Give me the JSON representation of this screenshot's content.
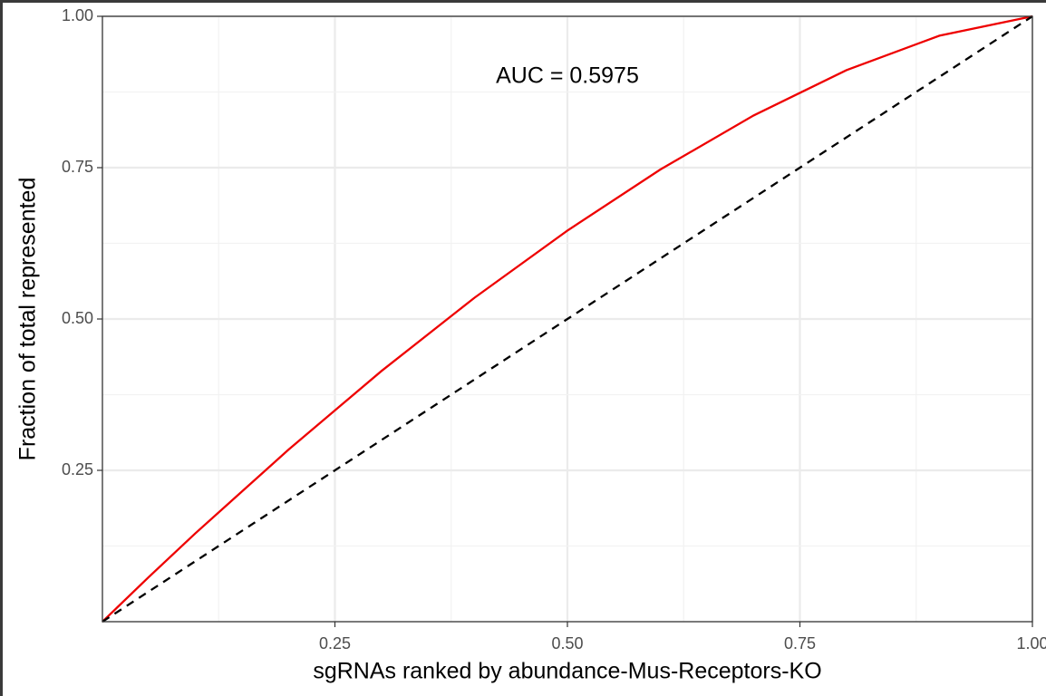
{
  "chart_data": {
    "type": "line",
    "xlabel": "sgRNAs ranked by abundance-Mus-Receptors-KO",
    "ylabel": "Fraction of total represented",
    "annotation": {
      "text": "AUC = 0.5975",
      "x": 0.5,
      "y": 0.9
    },
    "xlim": [
      0,
      1
    ],
    "ylim": [
      0,
      1
    ],
    "xticks": [
      {
        "value": 0.25,
        "label": "0.25"
      },
      {
        "value": 0.5,
        "label": "0.50"
      },
      {
        "value": 0.75,
        "label": "0.75"
      },
      {
        "value": 1,
        "label": "1.00"
      }
    ],
    "yticks": [
      {
        "value": 0.25,
        "label": "0.25"
      },
      {
        "value": 0.5,
        "label": "0.50"
      },
      {
        "value": 0.75,
        "label": "0.75"
      },
      {
        "value": 1,
        "label": "1.00"
      }
    ],
    "grid": true,
    "series": [
      {
        "color": "#ee0000",
        "dashed": false,
        "x": [
          0,
          0.05,
          0.1,
          0.2,
          0.3,
          0.4,
          0.5,
          0.6,
          0.7,
          0.8,
          0.9,
          1
        ],
        "values": [
          0,
          0.074,
          0.146,
          0.284,
          0.414,
          0.535,
          0.646,
          0.747,
          0.836,
          0.911,
          0.968,
          1
        ]
      },
      {
        "color": "#000000",
        "dashed": true,
        "x": [
          0,
          1
        ],
        "values": [
          0,
          1
        ]
      }
    ]
  }
}
